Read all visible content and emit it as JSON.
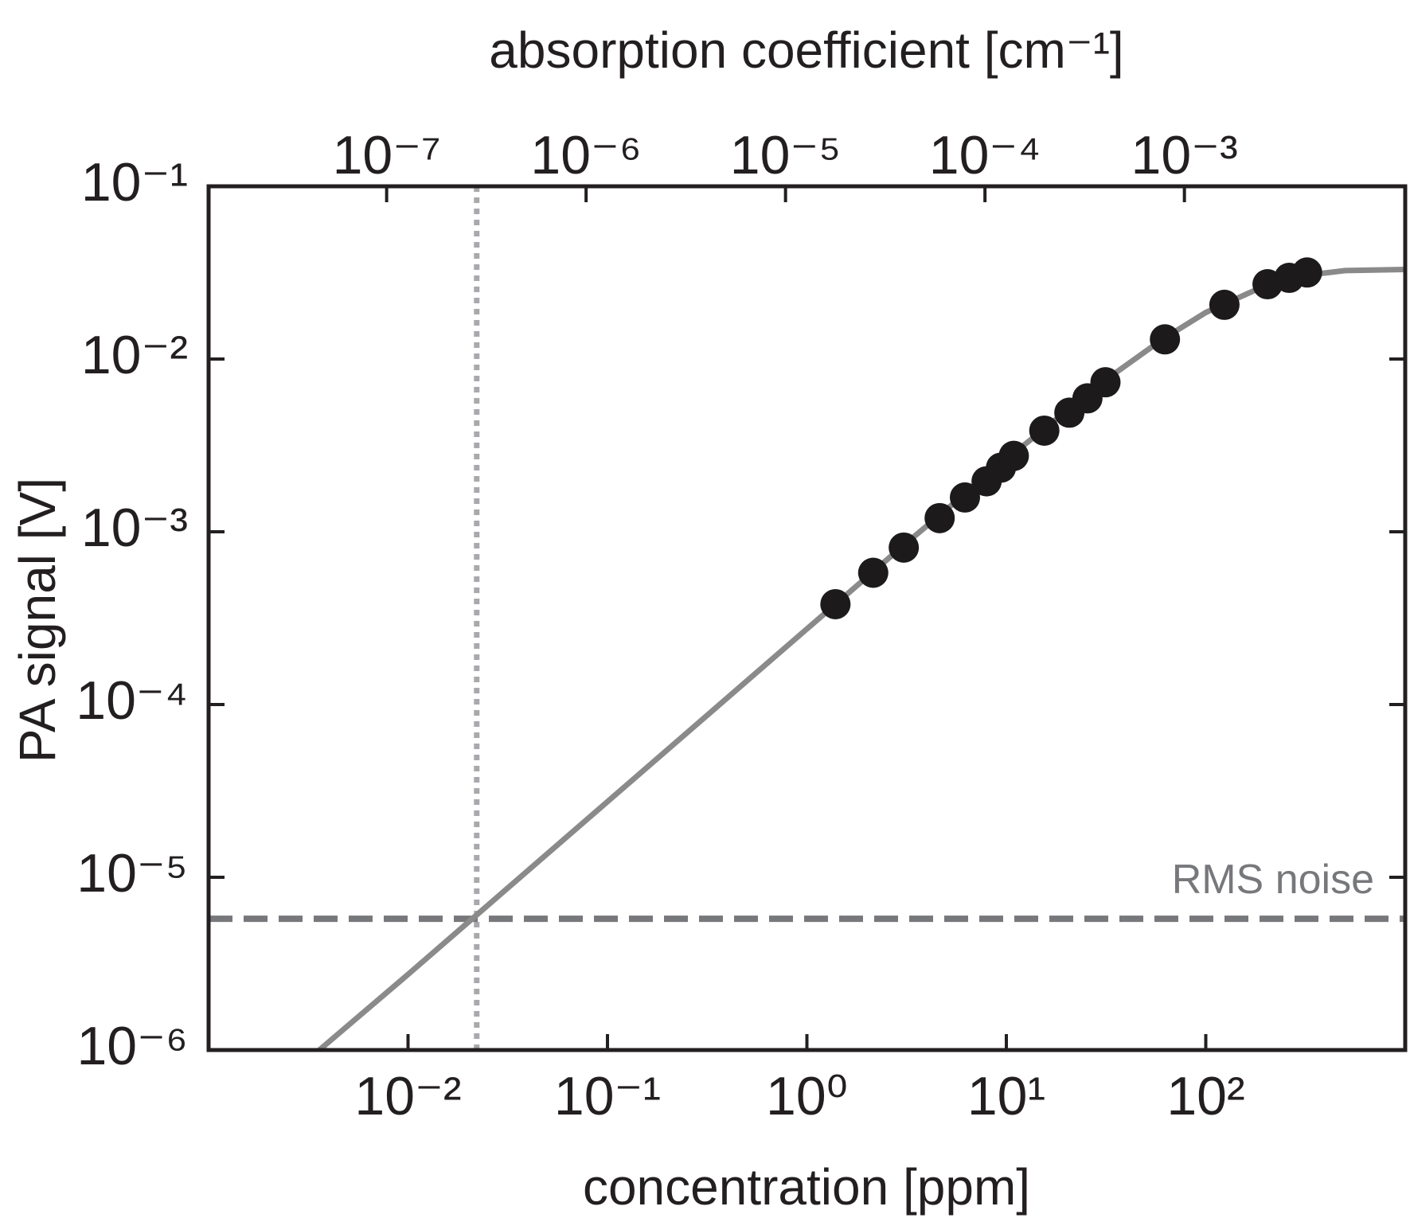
{
  "chart_data": {
    "type": "scatter",
    "xlabel": "concentration [ppm]",
    "x2label": "absorption coefficient [cm⁻¹]",
    "ylabel": "PA signal [V]",
    "xscale": "log",
    "yscale": "log",
    "xlim": [
      0.001,
      1000
    ],
    "x2lim": [
      1.28e-08,
      0.0128
    ],
    "ylim": [
      1e-06,
      0.1
    ],
    "xticks": [
      {
        "value": 0.01,
        "label": "10⁻²"
      },
      {
        "value": 0.1,
        "label": "10⁻¹"
      },
      {
        "value": 1,
        "label": "10⁰"
      },
      {
        "value": 10,
        "label": "10¹"
      },
      {
        "value": 100,
        "label": "10²"
      }
    ],
    "x2ticks": [
      {
        "value": 1e-07,
        "label": "10⁻⁷"
      },
      {
        "value": 1e-06,
        "label": "10⁻⁶"
      },
      {
        "value": 1e-05,
        "label": "10⁻⁵"
      },
      {
        "value": 0.0001,
        "label": "10⁻⁴"
      },
      {
        "value": 0.001,
        "label": "10⁻³"
      }
    ],
    "yticks": [
      {
        "value": 1e-06,
        "label": "10⁻⁶"
      },
      {
        "value": 1e-05,
        "label": "10⁻⁵"
      },
      {
        "value": 0.0001,
        "label": "10⁻⁴"
      },
      {
        "value": 0.001,
        "label": "10⁻³"
      },
      {
        "value": 0.01,
        "label": "10⁻²"
      },
      {
        "value": 0.1,
        "label": "10⁻¹"
      }
    ],
    "series": [
      {
        "type": "scatter",
        "color": "#1c1a1b",
        "x": [
          1.39,
          2.15,
          3.06,
          4.63,
          6.2,
          7.96,
          9.4,
          10.9,
          15.5,
          20.7,
          25.5,
          31.4,
          62.4,
          124,
          204,
          262,
          322
        ],
        "values": [
          0.000381,
          0.000579,
          0.00081,
          0.0012,
          0.00158,
          0.00196,
          0.00235,
          0.00275,
          0.00385,
          0.00489,
          0.00592,
          0.00734,
          0.013,
          0.0206,
          0.0271,
          0.0295,
          0.0317
        ]
      },
      {
        "type": "line",
        "color": "#8a8a8a",
        "x": [
          0.00359,
          0.01,
          0.1,
          1,
          3,
          10,
          30,
          60,
          100,
          200,
          300,
          500,
          1000
        ],
        "values": [
          1e-06,
          2.74e-06,
          2.74e-05,
          0.000274,
          0.00082,
          0.00263,
          0.00728,
          0.0129,
          0.0186,
          0.0267,
          0.0303,
          0.0325,
          0.033
        ]
      }
    ],
    "noise": {
      "text": "RMS noise",
      "value": 5.75e-06,
      "color": "#77787b"
    },
    "detection_limit": {
      "x": 0.0221,
      "color": "#a7a9ac"
    }
  }
}
